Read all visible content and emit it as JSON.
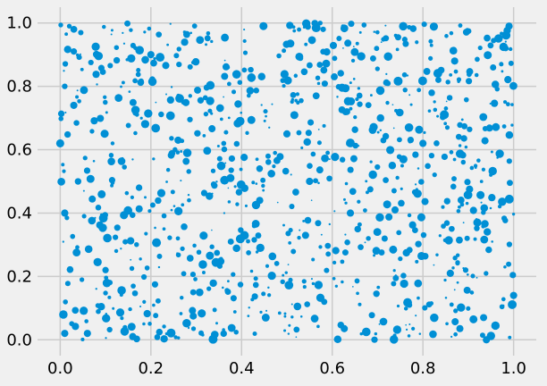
{
  "chart_data": {
    "type": "scatter",
    "title": "",
    "xlabel": "",
    "ylabel": "",
    "xlim": [
      -0.05,
      1.05
    ],
    "ylim": [
      -0.05,
      1.05
    ],
    "grid": true,
    "legend": "none",
    "marker_color": "#008fd5",
    "background_color": "#f0f0f0",
    "x_ticks": [
      0.0,
      0.2,
      0.4,
      0.6,
      0.8,
      1.0
    ],
    "x_tick_labels": [
      "0.0",
      "0.2",
      "0.4",
      "0.6",
      "0.8",
      "1.0"
    ],
    "y_ticks": [
      0.0,
      0.2,
      0.4,
      0.6,
      0.8,
      1.0
    ],
    "y_tick_labels": [
      "0.0",
      "0.2",
      "0.4",
      "0.6",
      "0.8",
      "1.0"
    ],
    "point_count": 1000,
    "x_range": [
      0.0,
      1.0
    ],
    "y_range": [
      0.0,
      1.0
    ],
    "marker_size_range": [
      1,
      10
    ],
    "sample_points": [
      {
        "x": 0.0,
        "y": 0.62,
        "size": 9
      },
      {
        "x": 0.01,
        "y": 0.02,
        "size": 8
      },
      {
        "x": 0.01,
        "y": 0.4,
        "size": 8
      },
      {
        "x": 0.01,
        "y": 0.8,
        "size": 6
      },
      {
        "x": 0.02,
        "y": 0.99,
        "size": 5
      },
      {
        "x": 0.03,
        "y": 0.91,
        "size": 7
      },
      {
        "x": 0.03,
        "y": 0.74,
        "size": 8
      },
      {
        "x": 0.06,
        "y": 0.02,
        "size": 8
      },
      {
        "x": 0.1,
        "y": 0.22,
        "size": 7
      },
      {
        "x": 0.16,
        "y": 0.01,
        "size": 8
      },
      {
        "x": 0.2,
        "y": 0.9,
        "size": 8
      },
      {
        "x": 0.26,
        "y": 0.63,
        "size": 8
      },
      {
        "x": 0.44,
        "y": 0.44,
        "size": 8
      },
      {
        "x": 0.5,
        "y": 0.65,
        "size": 8
      },
      {
        "x": 0.55,
        "y": 0.5,
        "size": 8
      },
      {
        "x": 0.58,
        "y": 0.98,
        "size": 6
      },
      {
        "x": 0.64,
        "y": 0.4,
        "size": 8
      },
      {
        "x": 0.7,
        "y": 0.34,
        "size": 8
      },
      {
        "x": 0.8,
        "y": 0.62,
        "size": 8
      },
      {
        "x": 0.87,
        "y": 0.88,
        "size": 8
      },
      {
        "x": 0.92,
        "y": 0.37,
        "size": 9
      },
      {
        "x": 0.94,
        "y": 0.0,
        "size": 8
      },
      {
        "x": 0.99,
        "y": 0.99,
        "size": 8
      },
      {
        "x": 1.0,
        "y": 0.14,
        "size": 8
      }
    ]
  }
}
